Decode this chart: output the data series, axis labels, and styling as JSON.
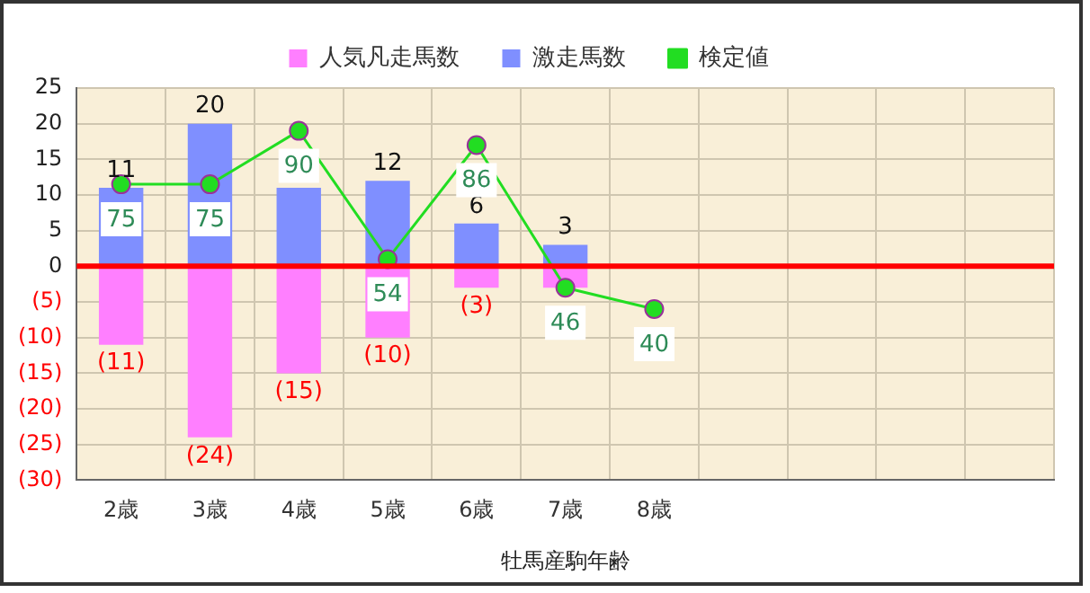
{
  "chart_data": {
    "type": "bar",
    "xlabel": "牡馬産駒年齢",
    "categories": [
      "2歳",
      "3歳",
      "4歳",
      "5歳",
      "6歳",
      "7歳",
      "8歳",
      null,
      null,
      null,
      null
    ],
    "stacked": true,
    "legend": "top",
    "grid": true,
    "ylim": [
      -30,
      25
    ],
    "yticks": [
      25,
      20,
      15,
      10,
      5,
      0,
      {
        "value": -5,
        "label": "(5)"
      },
      {
        "value": -10,
        "label": "(10)"
      },
      {
        "value": -15,
        "label": "(15)"
      },
      {
        "value": -20,
        "label": "(20)"
      },
      {
        "value": -25,
        "label": "(25)"
      },
      {
        "value": -30,
        "label": "(30)"
      }
    ],
    "y2lim": [
      -8,
      102
    ],
    "marker": "circle",
    "ref_lines": [
      {
        "axis": "y",
        "value": 0,
        "color": "#ff0000"
      }
    ],
    "series": [
      {
        "name": "人気凡走馬数",
        "color": "#ff7fff",
        "values": [
          -11,
          -24,
          -15,
          -10,
          -3,
          -3,
          null,
          null,
          null,
          null,
          null
        ],
        "value_labels": [
          "(11)",
          "(24)",
          "(15)",
          "(10)",
          "(3)",
          null,
          null,
          null,
          null,
          null,
          null
        ]
      },
      {
        "name": "激走馬数",
        "color": "#7f8fff",
        "values": [
          11,
          20,
          11,
          12,
          6,
          3,
          null,
          null,
          null,
          null,
          null
        ],
        "value_labels": [
          "11",
          "20",
          null,
          "12",
          "6",
          "3",
          null,
          null,
          null,
          null,
          null
        ]
      },
      {
        "name": "検定値",
        "type": "line",
        "axis": "y2",
        "color": "#22dd22",
        "values": [
          75,
          75,
          90,
          54,
          86,
          46,
          40,
          null,
          null,
          null,
          null
        ],
        "value_labels": [
          "75",
          "75",
          "90",
          "54",
          "86",
          "46",
          "40",
          null,
          null,
          null,
          null
        ]
      }
    ]
  }
}
